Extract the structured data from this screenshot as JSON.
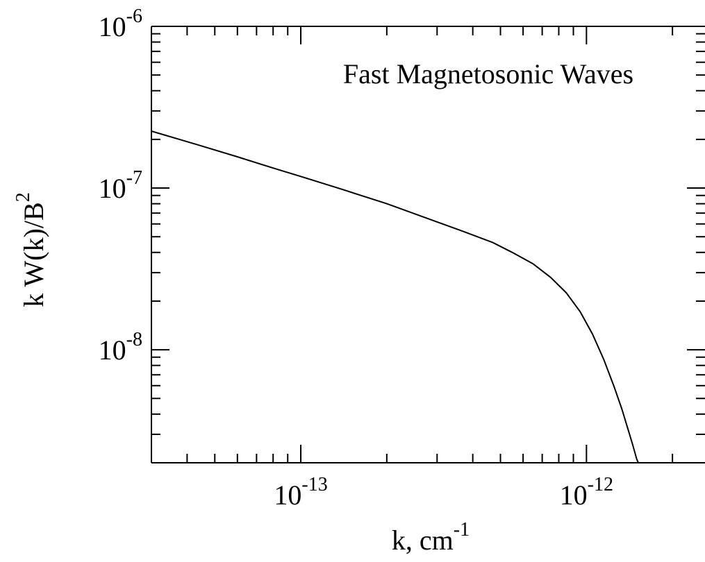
{
  "chart_data": {
    "type": "line",
    "title": "",
    "annotation": "Fast Magnetosonic Waves",
    "xlabel": {
      "base": "k, cm",
      "sup": "-1"
    },
    "ylabel": {
      "base": "k W(k)/B",
      "sup": "2"
    },
    "x_scale": "log",
    "y_scale": "log",
    "xlim": [
      3e-14,
      2.6e-12
    ],
    "ylim": [
      2e-09,
      1e-06
    ],
    "x_tick_labels": [
      {
        "value": 1e-13,
        "base": "10",
        "exp": "-13"
      },
      {
        "value": 1e-12,
        "base": "10",
        "exp": "-12"
      }
    ],
    "y_tick_labels": [
      {
        "value": 1e-08,
        "base": "10",
        "exp": "-8"
      },
      {
        "value": 1e-07,
        "base": "10",
        "exp": "-7"
      },
      {
        "value": 1e-06,
        "base": "10",
        "exp": "-6"
      }
    ],
    "grid": false,
    "legend": "none",
    "line_color": "#000000",
    "series": [
      {
        "x": [
          3e-14,
          4.5e-14,
          6e-14,
          8e-14,
          1e-13,
          1.4e-13,
          2e-13,
          2.7e-13,
          3.7e-13,
          4.7e-13,
          5.5e-13,
          6.5e-13,
          7.5e-13,
          8.5e-13,
          9.5e-13,
          1.05e-12,
          1.15e-12,
          1.25e-12,
          1.33e-12,
          1.4e-12,
          1.45e-12,
          1.5e-12,
          1.52e-12
        ],
        "y": [
          2.25e-07,
          1.82e-07,
          1.56e-07,
          1.33e-07,
          1.18e-07,
          9.8e-08,
          8e-08,
          6.6e-08,
          5.4e-08,
          4.6e-08,
          4e-08,
          3.4e-08,
          2.8e-08,
          2.25e-08,
          1.72e-08,
          1.25e-08,
          8.7e-09,
          5.9e-09,
          4.3e-09,
          3.2e-09,
          2.6e-09,
          2.1e-09,
          2e-09
        ]
      }
    ]
  }
}
